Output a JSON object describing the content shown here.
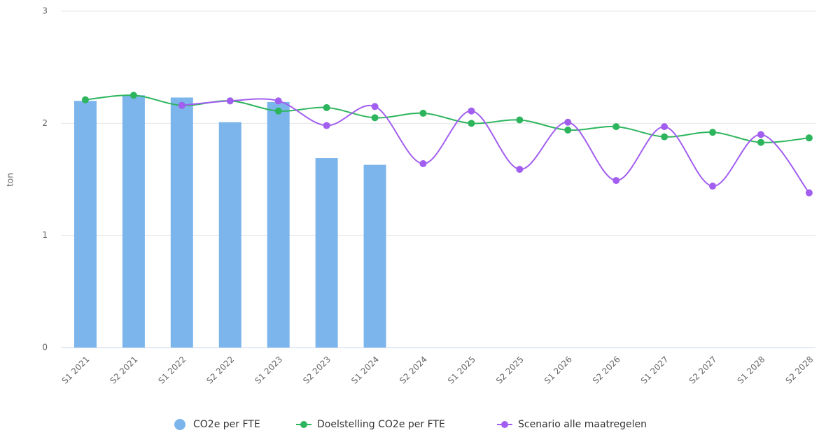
{
  "chart_data": {
    "type": "bar-line",
    "y_label": "ton",
    "categories": [
      "S1 2021",
      "S2 2021",
      "S1 2022",
      "S2 2022",
      "S1 2023",
      "S2 2023",
      "S1 2024",
      "S2 2024",
      "S1 2025",
      "S2 2025",
      "S1 2026",
      "S2 2026",
      "S1 2027",
      "S2 2027",
      "S1 2028",
      "S2 2028"
    ],
    "series": [
      {
        "name": "CO2e per FTE",
        "type": "bar",
        "color": "#7cb5ec",
        "values": [
          2.2,
          2.25,
          2.23,
          2.01,
          2.19,
          1.69,
          1.63,
          null,
          null,
          null,
          null,
          null,
          null,
          null,
          null,
          null
        ]
      },
      {
        "name": "Doelstelling CO2e per FTE",
        "type": "line",
        "color": "#2db55d",
        "values": [
          2.21,
          2.25,
          2.16,
          2.2,
          2.11,
          2.14,
          2.05,
          2.09,
          2.0,
          2.03,
          1.94,
          1.97,
          1.88,
          1.92,
          1.83,
          1.87
        ]
      },
      {
        "name": "Scenario alle maatregelen",
        "type": "line",
        "color": "#a25ef0",
        "values": [
          null,
          null,
          2.16,
          2.2,
          2.2,
          1.98,
          2.15,
          1.64,
          2.11,
          1.59,
          2.01,
          1.49,
          1.97,
          1.44,
          1.9,
          1.38
        ]
      }
    ],
    "ylim": [
      0,
      3
    ],
    "yticks": [
      0,
      1,
      2,
      3
    ],
    "grid": true
  }
}
